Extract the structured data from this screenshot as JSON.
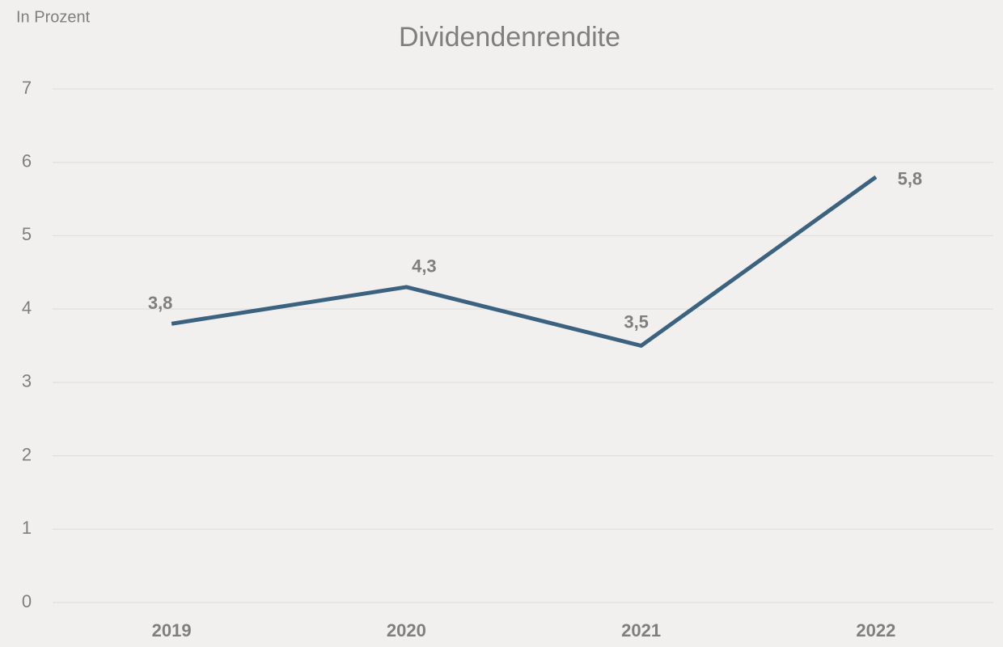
{
  "chart_data": {
    "type": "line",
    "title": "Dividendenrendite",
    "y_label": "In Prozent",
    "categories": [
      "2019",
      "2020",
      "2021",
      "2022"
    ],
    "series": [
      {
        "name": "Dividendenrendite",
        "color": "#3b6380",
        "values": [
          3.8,
          4.3,
          3.5,
          5.8
        ],
        "value_labels": [
          "3,8",
          "4,3",
          "3,5",
          "5,8"
        ]
      }
    ],
    "ylim": [
      0,
      7
    ],
    "yticks": [
      0,
      1,
      2,
      3,
      4,
      5,
      6,
      7
    ],
    "grid": true
  }
}
